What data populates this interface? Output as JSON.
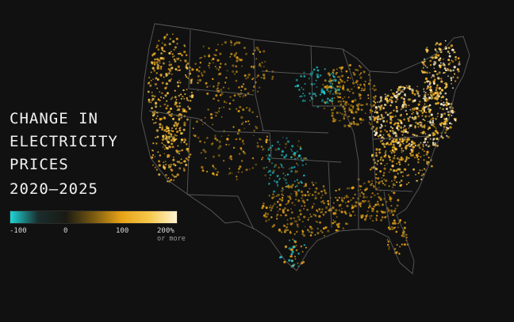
{
  "title": {
    "line1": "CHANGE IN",
    "line2": "ELECTRICITY",
    "line3": "PRICES",
    "years": "2020–2025"
  },
  "legend": {
    "gradient": [
      "#1fd6d6",
      "#1a2d2d",
      "#1a1a14",
      "#7a5a10",
      "#e8a317",
      "#f6c84a",
      "#fff3cf"
    ],
    "ticks": [
      {
        "label": "-100",
        "sub": ""
      },
      {
        "label": "0",
        "sub": ""
      },
      {
        "label": "100",
        "sub": ""
      },
      {
        "label": "200%",
        "sub": "or more"
      }
    ]
  },
  "colors": {
    "background": "#111111",
    "boundary": "#5a5a5a",
    "decrease": "#1fc9cf",
    "increase": "#e8a317",
    "strong_increase": "#f6c84a",
    "extreme_increase": "#fff3cf"
  }
}
